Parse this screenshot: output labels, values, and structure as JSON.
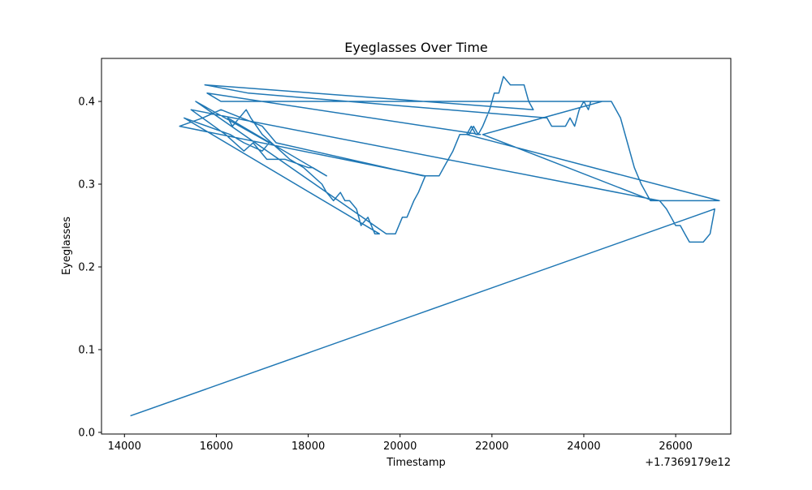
{
  "chart_data": {
    "type": "line",
    "title": "Eyeglasses Over Time",
    "xlabel": "Timestamp",
    "ylabel": "Eyeglasses",
    "x_offset_label": "+1.7369179e12",
    "xlim": [
      13500,
      27200
    ],
    "ylim": [
      -0.002,
      0.452
    ],
    "x_ticks": [
      14000,
      16000,
      18000,
      20000,
      22000,
      24000,
      26000
    ],
    "x_tick_labels": [
      "14000",
      "16000",
      "18000",
      "20000",
      "22000",
      "24000",
      "26000"
    ],
    "y_ticks": [
      0.0,
      0.1,
      0.2,
      0.3,
      0.4
    ],
    "y_tick_labels": [
      "0.0",
      "0.1",
      "0.2",
      "0.3",
      "0.4"
    ],
    "grid": false,
    "color": "#1f77b4",
    "series": [
      {
        "x": [
          14130,
          26850,
          26750,
          26600,
          26500,
          26300,
          26200,
          26100,
          26000,
          25900,
          25800,
          25650,
          15450,
          16200,
          16600,
          16800,
          17100,
          17300,
          17500,
          18000,
          18100,
          18400,
          16250,
          16350,
          16650,
          16750,
          17000,
          17400,
          17600,
          17900,
          18100,
          18300,
          18400,
          18550,
          18700,
          18800,
          18900,
          19050,
          19150,
          19300,
          19450,
          19550,
          15300,
          16300,
          16600,
          17000,
          17150,
          15550,
          19700,
          19900,
          20050,
          20150,
          20300,
          20400,
          20550,
          15200,
          15700,
          16100,
          17000,
          17300,
          20500,
          20850,
          20950,
          21050,
          21150,
          21300,
          21500,
          21600,
          21700,
          21800,
          21950,
          22050,
          22150,
          22250,
          22400,
          22500,
          22700,
          22800,
          22900,
          15750,
          16700,
          23200,
          23300,
          23450,
          23600,
          23700,
          23800,
          23900,
          24000,
          24100,
          24150,
          24250,
          24350,
          24500,
          24600,
          24800,
          24950,
          25100,
          25250,
          25350,
          25450,
          26950,
          21450,
          21550,
          21650,
          21750,
          15800,
          16100,
          24400,
          21800,
          25500
        ]
      }
    ],
    "y": [
      0.02,
      0.27,
      0.24,
      0.23,
      0.23,
      0.23,
      0.24,
      0.25,
      0.25,
      0.26,
      0.27,
      0.28,
      0.39,
      0.36,
      0.34,
      0.35,
      0.33,
      0.33,
      0.33,
      0.32,
      0.32,
      0.31,
      0.38,
      0.37,
      0.39,
      0.38,
      0.36,
      0.34,
      0.33,
      0.32,
      0.31,
      0.3,
      0.29,
      0.28,
      0.29,
      0.28,
      0.28,
      0.27,
      0.25,
      0.26,
      0.24,
      0.24,
      0.38,
      0.36,
      0.35,
      0.34,
      0.35,
      0.4,
      0.24,
      0.24,
      0.26,
      0.26,
      0.28,
      0.29,
      0.31,
      0.37,
      0.38,
      0.39,
      0.37,
      0.35,
      0.31,
      0.31,
      0.32,
      0.33,
      0.34,
      0.36,
      0.36,
      0.37,
      0.36,
      0.37,
      0.39,
      0.41,
      0.41,
      0.43,
      0.42,
      0.42,
      0.42,
      0.4,
      0.39,
      0.42,
      0.41,
      0.38,
      0.37,
      0.37,
      0.37,
      0.38,
      0.37,
      0.39,
      0.4,
      0.39,
      0.4,
      0.4,
      0.4,
      0.4,
      0.4,
      0.38,
      0.35,
      0.32,
      0.3,
      0.29,
      0.28,
      0.28,
      0.36,
      0.37,
      0.36,
      0.36,
      0.41,
      0.4,
      0.4,
      0.36,
      0.28
    ]
  }
}
